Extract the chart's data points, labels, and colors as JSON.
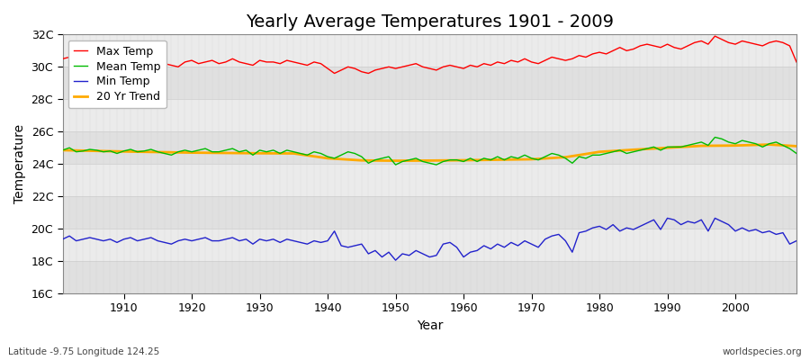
{
  "title": "Yearly Average Temperatures 1901 - 2009",
  "xlabel": "Year",
  "ylabel": "Temperature",
  "lat_lon_label": "Latitude -9.75 Longitude 124.25",
  "credit_label": "worldspecies.org",
  "years": [
    1901,
    1902,
    1903,
    1904,
    1905,
    1906,
    1907,
    1908,
    1909,
    1910,
    1911,
    1912,
    1913,
    1914,
    1915,
    1916,
    1917,
    1918,
    1919,
    1920,
    1921,
    1922,
    1923,
    1924,
    1925,
    1926,
    1927,
    1928,
    1929,
    1930,
    1931,
    1932,
    1933,
    1934,
    1935,
    1936,
    1937,
    1938,
    1939,
    1940,
    1941,
    1942,
    1943,
    1944,
    1945,
    1946,
    1947,
    1948,
    1949,
    1950,
    1951,
    1952,
    1953,
    1954,
    1955,
    1956,
    1957,
    1958,
    1959,
    1960,
    1961,
    1962,
    1963,
    1964,
    1965,
    1966,
    1967,
    1968,
    1969,
    1970,
    1971,
    1972,
    1973,
    1974,
    1975,
    1976,
    1977,
    1978,
    1979,
    1980,
    1981,
    1982,
    1983,
    1984,
    1985,
    1986,
    1987,
    1988,
    1989,
    1990,
    1991,
    1992,
    1993,
    1994,
    1995,
    1996,
    1997,
    1998,
    1999,
    2000,
    2001,
    2002,
    2003,
    2004,
    2005,
    2006,
    2007,
    2008,
    2009
  ],
  "max_temp": [
    30.5,
    30.6,
    30.4,
    30.3,
    30.5,
    30.4,
    30.2,
    30.3,
    30.1,
    30.3,
    30.4,
    30.2,
    30.4,
    30.5,
    30.3,
    30.2,
    30.1,
    30.0,
    30.3,
    30.4,
    30.2,
    30.3,
    30.4,
    30.2,
    30.3,
    30.5,
    30.3,
    30.2,
    30.1,
    30.4,
    30.3,
    30.3,
    30.2,
    30.4,
    30.3,
    30.2,
    30.1,
    30.3,
    30.2,
    29.9,
    29.6,
    29.8,
    30.0,
    29.9,
    29.7,
    29.6,
    29.8,
    29.9,
    30.0,
    29.9,
    30.0,
    30.1,
    30.2,
    30.0,
    29.9,
    29.8,
    30.0,
    30.1,
    30.0,
    29.9,
    30.1,
    30.0,
    30.2,
    30.1,
    30.3,
    30.2,
    30.4,
    30.3,
    30.5,
    30.3,
    30.2,
    30.4,
    30.6,
    30.5,
    30.4,
    30.5,
    30.7,
    30.6,
    30.8,
    30.9,
    30.8,
    31.0,
    31.2,
    31.0,
    31.1,
    31.3,
    31.4,
    31.3,
    31.2,
    31.4,
    31.2,
    31.1,
    31.3,
    31.5,
    31.6,
    31.4,
    31.9,
    31.7,
    31.5,
    31.4,
    31.6,
    31.5,
    31.4,
    31.3,
    31.5,
    31.6,
    31.5,
    31.3,
    30.3
  ],
  "mean_temp": [
    24.85,
    25.0,
    24.75,
    24.8,
    24.9,
    24.85,
    24.75,
    24.8,
    24.65,
    24.8,
    24.9,
    24.75,
    24.8,
    24.9,
    24.75,
    24.65,
    24.55,
    24.75,
    24.85,
    24.75,
    24.85,
    24.95,
    24.75,
    24.75,
    24.85,
    24.95,
    24.75,
    24.85,
    24.55,
    24.85,
    24.75,
    24.85,
    24.65,
    24.85,
    24.75,
    24.65,
    24.55,
    24.75,
    24.65,
    24.45,
    24.35,
    24.55,
    24.75,
    24.65,
    24.45,
    24.05,
    24.25,
    24.35,
    24.45,
    23.95,
    24.15,
    24.25,
    24.35,
    24.15,
    24.05,
    23.95,
    24.15,
    24.25,
    24.25,
    24.15,
    24.35,
    24.15,
    24.35,
    24.25,
    24.45,
    24.25,
    24.45,
    24.35,
    24.55,
    24.35,
    24.25,
    24.45,
    24.65,
    24.55,
    24.35,
    24.05,
    24.45,
    24.35,
    24.55,
    24.55,
    24.65,
    24.75,
    24.85,
    24.65,
    24.75,
    24.85,
    24.95,
    25.05,
    24.85,
    25.05,
    25.05,
    25.05,
    25.15,
    25.25,
    25.35,
    25.15,
    25.65,
    25.55,
    25.35,
    25.25,
    25.45,
    25.35,
    25.25,
    25.05,
    25.25,
    25.35,
    25.15,
    24.95,
    24.65
  ],
  "min_temp": [
    19.35,
    19.55,
    19.25,
    19.35,
    19.45,
    19.35,
    19.25,
    19.35,
    19.15,
    19.35,
    19.45,
    19.25,
    19.35,
    19.45,
    19.25,
    19.15,
    19.05,
    19.25,
    19.35,
    19.25,
    19.35,
    19.45,
    19.25,
    19.25,
    19.35,
    19.45,
    19.25,
    19.35,
    19.05,
    19.35,
    19.25,
    19.35,
    19.15,
    19.35,
    19.25,
    19.15,
    19.05,
    19.25,
    19.15,
    19.25,
    19.85,
    18.95,
    18.85,
    18.95,
    19.05,
    18.45,
    18.65,
    18.25,
    18.55,
    18.05,
    18.45,
    18.35,
    18.65,
    18.45,
    18.25,
    18.35,
    19.05,
    19.15,
    18.85,
    18.25,
    18.55,
    18.65,
    18.95,
    18.75,
    19.05,
    18.85,
    19.15,
    18.95,
    19.25,
    19.05,
    18.85,
    19.35,
    19.55,
    19.65,
    19.25,
    18.55,
    19.75,
    19.85,
    20.05,
    20.15,
    19.95,
    20.25,
    19.85,
    20.05,
    19.95,
    20.15,
    20.35,
    20.55,
    19.95,
    20.65,
    20.55,
    20.25,
    20.45,
    20.35,
    20.55,
    19.85,
    20.65,
    20.45,
    20.25,
    19.85,
    20.05,
    19.85,
    19.95,
    19.75,
    19.85,
    19.65,
    19.75,
    19.05,
    19.25
  ],
  "trend_years": [
    1901,
    1910,
    1920,
    1930,
    1935,
    1940,
    1945,
    1950,
    1955,
    1960,
    1965,
    1970,
    1975,
    1977,
    1980,
    1985,
    1990,
    1995,
    2000,
    2005,
    2009
  ],
  "trend_temp": [
    24.85,
    24.77,
    24.7,
    24.66,
    24.65,
    24.35,
    24.22,
    24.2,
    24.21,
    24.23,
    24.26,
    24.29,
    24.42,
    24.55,
    24.75,
    24.88,
    25.0,
    25.12,
    25.14,
    25.2,
    25.1
  ],
  "max_color": "#ff0000",
  "mean_color": "#00bb00",
  "min_color": "#2222cc",
  "trend_color": "#ffaa00",
  "fig_bg_color": "#ffffff",
  "plot_bg_color": "#e8e8e8",
  "stripe_color_1": "#e0e0e0",
  "stripe_color_2": "#ebebeb",
  "grid_color": "#cccccc",
  "ylim": [
    16,
    32
  ],
  "yticks": [
    16,
    18,
    20,
    22,
    24,
    26,
    28,
    30,
    32
  ],
  "ytick_labels": [
    "16C",
    "18C",
    "20C",
    "22C",
    "24C",
    "26C",
    "28C",
    "30C",
    "32C"
  ],
  "xlim": [
    1901,
    2009
  ],
  "xticks": [
    1910,
    1920,
    1930,
    1940,
    1950,
    1960,
    1970,
    1980,
    1990,
    2000
  ],
  "title_fontsize": 14,
  "axis_label_fontsize": 10,
  "tick_fontsize": 9,
  "legend_fontsize": 9,
  "line_width": 1.0
}
